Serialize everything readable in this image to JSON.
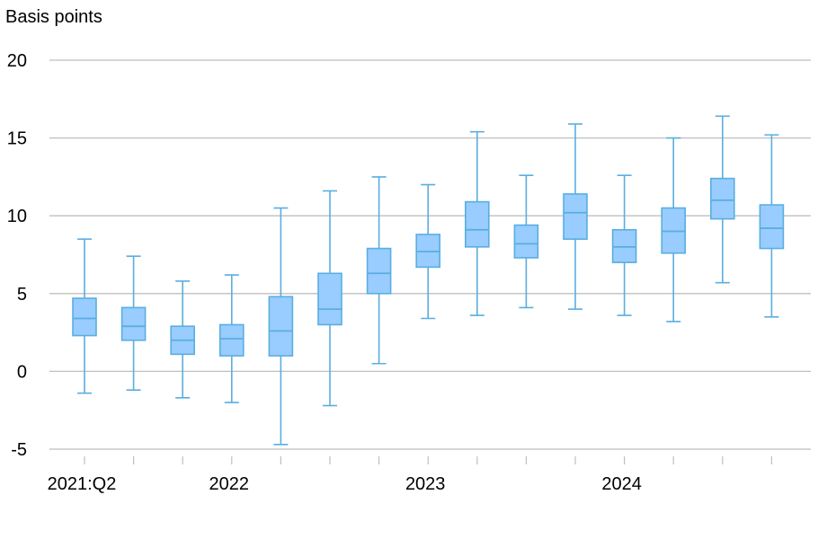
{
  "chart_data": {
    "type": "box",
    "ylabel": "Basis points",
    "ylim": [
      -5,
      20
    ],
    "yticks": [
      -5,
      0,
      5,
      10,
      15,
      20
    ],
    "grid": true,
    "x_tick_labels": [
      {
        "label": "2021:Q2",
        "index": 0
      },
      {
        "label": "2022",
        "index": 3
      },
      {
        "label": "2023",
        "index": 7
      },
      {
        "label": "2024",
        "index": 11
      }
    ],
    "colors": {
      "box_fill": "#99ccff",
      "box_stroke": "#5aaee0",
      "grid": "#bfbfbf"
    },
    "boxes": [
      {
        "min": -1.4,
        "q1": 2.3,
        "median": 3.4,
        "q3": 4.7,
        "max": 8.5
      },
      {
        "min": -1.2,
        "q1": 2.0,
        "median": 2.9,
        "q3": 4.1,
        "max": 7.4
      },
      {
        "min": -1.7,
        "q1": 1.1,
        "median": 2.0,
        "q3": 2.9,
        "max": 5.8
      },
      {
        "min": -2.0,
        "q1": 1.0,
        "median": 2.1,
        "q3": 3.0,
        "max": 6.2
      },
      {
        "min": -4.7,
        "q1": 1.0,
        "median": 2.6,
        "q3": 4.8,
        "max": 10.5
      },
      {
        "min": -2.2,
        "q1": 3.0,
        "median": 4.0,
        "q3": 6.3,
        "max": 11.6
      },
      {
        "min": 0.5,
        "q1": 5.0,
        "median": 6.3,
        "q3": 7.9,
        "max": 12.5
      },
      {
        "min": 3.4,
        "q1": 6.7,
        "median": 7.7,
        "q3": 8.8,
        "max": 12.0
      },
      {
        "min": 3.6,
        "q1": 8.0,
        "median": 9.1,
        "q3": 10.9,
        "max": 15.4
      },
      {
        "min": 4.1,
        "q1": 7.3,
        "median": 8.2,
        "q3": 9.4,
        "max": 12.6
      },
      {
        "min": 4.0,
        "q1": 8.5,
        "median": 10.2,
        "q3": 11.4,
        "max": 15.9
      },
      {
        "min": 3.6,
        "q1": 7.0,
        "median": 8.0,
        "q3": 9.1,
        "max": 12.6
      },
      {
        "min": 3.2,
        "q1": 7.6,
        "median": 9.0,
        "q3": 10.5,
        "max": 15.0
      },
      {
        "min": 5.7,
        "q1": 9.8,
        "median": 11.0,
        "q3": 12.4,
        "max": 16.4
      },
      {
        "min": 3.5,
        "q1": 7.9,
        "median": 9.2,
        "q3": 10.7,
        "max": 15.2
      }
    ]
  }
}
